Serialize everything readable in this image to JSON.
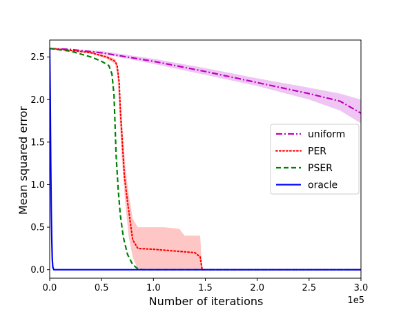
{
  "chart_data": {
    "type": "line",
    "title": "",
    "xlabel": "Number of iterations",
    "ylabel": "Mean squared error",
    "x_offset_label": "1e5",
    "xlim": [
      0,
      300000
    ],
    "ylim": [
      -0.1,
      2.7
    ],
    "x_ticks": [
      0,
      50000,
      100000,
      150000,
      200000,
      250000,
      300000
    ],
    "x_tick_labels": [
      "0.0",
      "0.5",
      "1.0",
      "1.5",
      "2.0",
      "2.5",
      "3.0"
    ],
    "y_ticks": [
      0.0,
      0.5,
      1.0,
      1.5,
      2.0,
      2.5
    ],
    "y_tick_labels": [
      "0.0",
      "0.5",
      "1.0",
      "1.5",
      "2.0",
      "2.5"
    ],
    "grid": false,
    "legend_position": "center-right",
    "series": [
      {
        "name": "uniform",
        "color": "#bf00bf",
        "style": "dashdot",
        "points": [
          [
            0,
            2.6
          ],
          [
            20000,
            2.59
          ],
          [
            50000,
            2.55
          ],
          [
            100000,
            2.45
          ],
          [
            150000,
            2.33
          ],
          [
            200000,
            2.2
          ],
          [
            250000,
            2.07
          ],
          [
            280000,
            1.98
          ],
          [
            300000,
            1.84
          ]
        ],
        "band_upper": [
          [
            0,
            2.6
          ],
          [
            20000,
            2.59
          ],
          [
            50000,
            2.57
          ],
          [
            100000,
            2.48
          ],
          [
            150000,
            2.37
          ],
          [
            200000,
            2.25
          ],
          [
            250000,
            2.14
          ],
          [
            280000,
            2.07
          ],
          [
            300000,
            2.0
          ]
        ],
        "band_lower": [
          [
            0,
            2.6
          ],
          [
            20000,
            2.59
          ],
          [
            50000,
            2.54
          ],
          [
            100000,
            2.42
          ],
          [
            150000,
            2.29
          ],
          [
            200000,
            2.16
          ],
          [
            250000,
            2.0
          ],
          [
            280000,
            1.87
          ],
          [
            300000,
            1.72
          ]
        ]
      },
      {
        "name": "PER",
        "color": "#ff0000",
        "style": "dotted",
        "points": [
          [
            0,
            2.6
          ],
          [
            20000,
            2.58
          ],
          [
            40000,
            2.55
          ],
          [
            55000,
            2.5
          ],
          [
            63000,
            2.45
          ],
          [
            65000,
            2.4
          ],
          [
            67000,
            2.2
          ],
          [
            68000,
            1.9
          ],
          [
            70000,
            1.5
          ],
          [
            72000,
            1.1
          ],
          [
            75000,
            0.8
          ],
          [
            80000,
            0.35
          ],
          [
            85000,
            0.25
          ],
          [
            100000,
            0.24
          ],
          [
            120000,
            0.22
          ],
          [
            140000,
            0.2
          ],
          [
            145000,
            0.15
          ],
          [
            147000,
            0.0
          ],
          [
            300000,
            0.0
          ]
        ],
        "band_upper": [
          [
            0,
            2.6
          ],
          [
            40000,
            2.56
          ],
          [
            55000,
            2.52
          ],
          [
            63000,
            2.48
          ],
          [
            66000,
            2.35
          ],
          [
            68000,
            2.05
          ],
          [
            70000,
            1.7
          ],
          [
            73000,
            1.2
          ],
          [
            76000,
            0.9
          ],
          [
            80000,
            0.6
          ],
          [
            85000,
            0.5
          ],
          [
            90000,
            0.5
          ],
          [
            110000,
            0.5
          ],
          [
            125000,
            0.48
          ],
          [
            130000,
            0.4
          ],
          [
            145000,
            0.4
          ],
          [
            147000,
            0.0
          ]
        ],
        "band_lower": [
          [
            0,
            2.6
          ],
          [
            40000,
            2.54
          ],
          [
            55000,
            2.48
          ],
          [
            63000,
            2.42
          ],
          [
            65000,
            2.3
          ],
          [
            67000,
            1.9
          ],
          [
            69000,
            1.4
          ],
          [
            72000,
            0.9
          ],
          [
            76000,
            0.4
          ],
          [
            80000,
            0.15
          ],
          [
            85000,
            0.0
          ],
          [
            147000,
            0.0
          ]
        ]
      },
      {
        "name": "PSER",
        "color": "#008000",
        "style": "dashed",
        "points": [
          [
            0,
            2.6
          ],
          [
            20000,
            2.57
          ],
          [
            40000,
            2.5
          ],
          [
            50000,
            2.45
          ],
          [
            57000,
            2.4
          ],
          [
            60000,
            2.3
          ],
          [
            62000,
            2.05
          ],
          [
            63000,
            1.7
          ],
          [
            64000,
            1.35
          ],
          [
            66000,
            0.95
          ],
          [
            68000,
            0.65
          ],
          [
            71000,
            0.38
          ],
          [
            75000,
            0.18
          ],
          [
            80000,
            0.06
          ],
          [
            85000,
            0.01
          ],
          [
            90000,
            0.0
          ],
          [
            300000,
            0.0
          ]
        ]
      },
      {
        "name": "oracle",
        "color": "#0000ff",
        "style": "solid",
        "points": [
          [
            0,
            2.6
          ],
          [
            500,
            2.05
          ],
          [
            1000,
            1.25
          ],
          [
            1500,
            0.7
          ],
          [
            2000,
            0.35
          ],
          [
            2500,
            0.12
          ],
          [
            3000,
            0.03
          ],
          [
            4000,
            0.0
          ],
          [
            300000,
            0.0
          ]
        ]
      }
    ]
  }
}
